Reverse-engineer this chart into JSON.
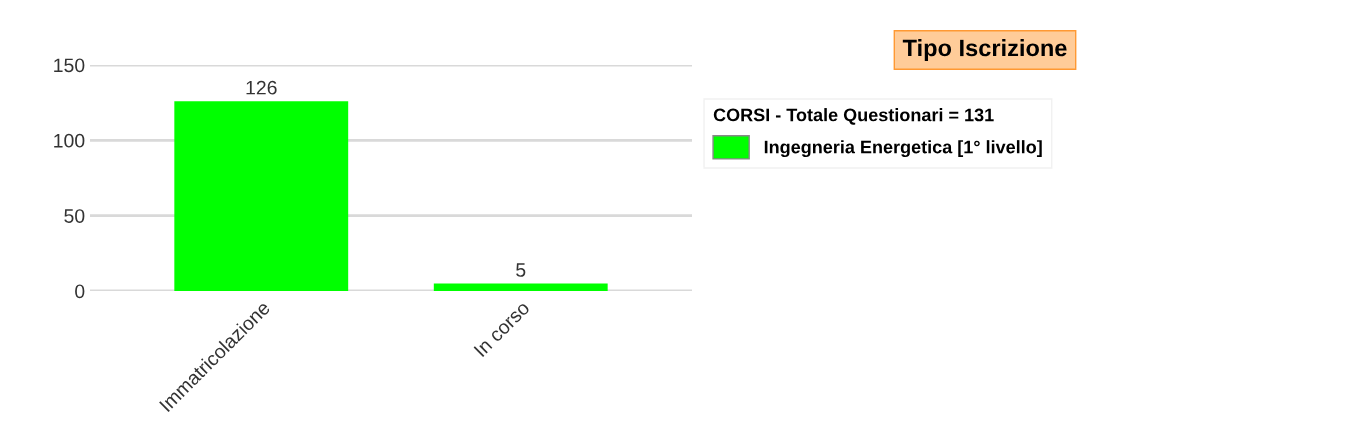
{
  "chart_data": {
    "type": "bar",
    "title": "Tipo Iscrizione",
    "legend_title": "CORSI - Totale Questionari = 131",
    "categories": [
      "Immatricolazione",
      "In corso"
    ],
    "series": [
      {
        "name": "Ingegneria Energetica [1° livello]",
        "color": "#00ff00",
        "values": [
          126,
          5
        ]
      }
    ],
    "ylim": [
      0,
      150
    ],
    "yticks": [
      0,
      50,
      100,
      150
    ],
    "grid": "y",
    "legend": "right",
    "data_labels": true
  }
}
